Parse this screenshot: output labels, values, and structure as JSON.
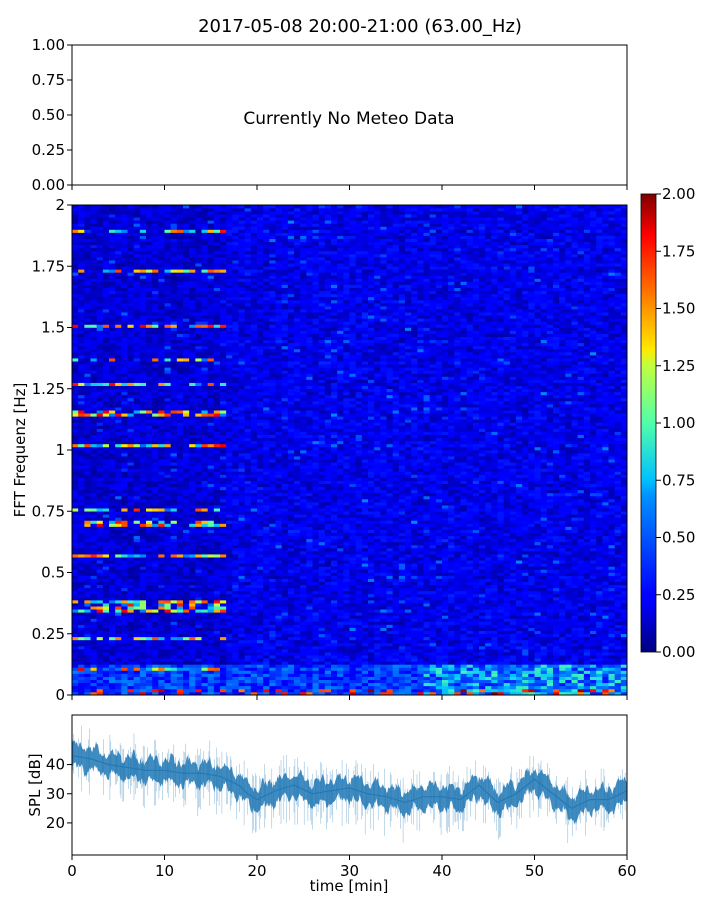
{
  "figure": {
    "title": "2017-05-08 20:00-21:00 (63.00_Hz)",
    "meteo_message": "Currently No Meteo Data"
  },
  "chart_data": [
    {
      "type": "line",
      "panel": "meteo",
      "title": "2017-05-08 20:00-21:00 (63.00_Hz)",
      "annotation": "Currently No Meteo Data",
      "ylim": [
        0,
        1
      ],
      "yticks": [
        "0.00",
        "0.25",
        "0.50",
        "0.75",
        "1.00"
      ],
      "series": []
    },
    {
      "type": "heatmap",
      "panel": "spectrogram",
      "ylabel": "FFT Frequenz [Hz]",
      "xlim": [
        0,
        60
      ],
      "ylim": [
        0,
        2
      ],
      "yticks": [
        "0",
        "0.25",
        "0.5",
        "0.75",
        "1",
        "1.25",
        "1.5",
        "1.75",
        "2"
      ],
      "colormap": "jet",
      "colorbar": {
        "min": 0,
        "max": 2,
        "ticks": [
          "0.00",
          "0.25",
          "0.50",
          "0.75",
          "1.00",
          "1.25",
          "1.50",
          "1.75",
          "2.00"
        ]
      },
      "features": {
        "background_level": 0.22,
        "harmonic_lines_hz": [
          0.11,
          0.23,
          0.35,
          0.375,
          0.57,
          0.7,
          0.755,
          1.02,
          1.15,
          1.27,
          1.37,
          1.51,
          1.73,
          1.89
        ],
        "harmonic_lines_end_min": 17,
        "low_freq_band_hz": [
          0,
          0.12
        ],
        "low_freq_band_level": 0.7
      }
    },
    {
      "type": "line",
      "panel": "spl",
      "xlabel": "time [min]",
      "ylabel": "SPL [dB]",
      "xlim": [
        0,
        60
      ],
      "ylim": [
        9,
        57
      ],
      "xticks": [
        "0",
        "10",
        "20",
        "30",
        "40",
        "50",
        "60"
      ],
      "yticks": [
        "20",
        "30",
        "40"
      ],
      "series": [
        {
          "color": "#1f77b4",
          "x": [
            0,
            2,
            4,
            6,
            8,
            10,
            12,
            14,
            16,
            18,
            19,
            20,
            22,
            24,
            26,
            28,
            30,
            32,
            34,
            36,
            38,
            40,
            42,
            44,
            46,
            48,
            50,
            52,
            54,
            56,
            58,
            60
          ],
          "y": [
            43,
            42,
            40,
            39,
            38,
            38,
            37,
            37,
            36,
            33,
            30,
            28,
            31,
            33,
            30,
            31,
            32,
            30,
            29,
            27,
            29,
            29,
            28,
            33,
            27,
            30,
            35,
            30,
            25,
            28,
            28,
            31
          ]
        }
      ]
    }
  ]
}
